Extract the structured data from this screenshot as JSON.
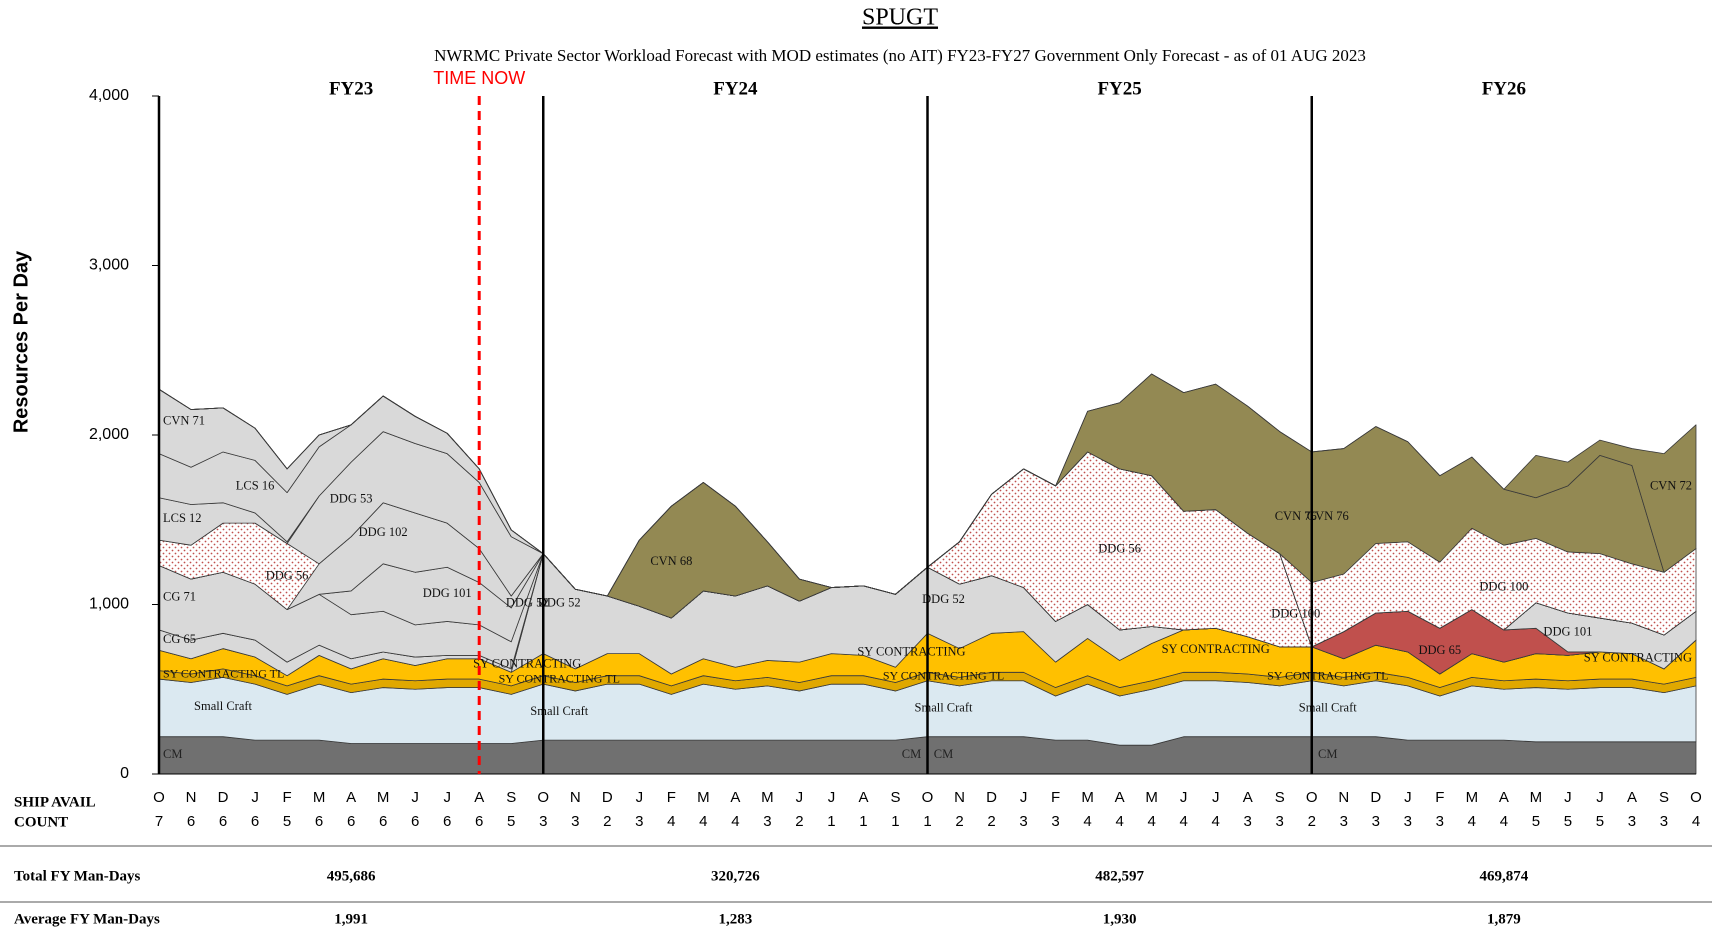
{
  "chart_data": {
    "type": "stacked-area",
    "title": "SPUGT",
    "subtitle": "NWRMC Private Sector Workload Forecast with MOD estimates (no AIT) FY23-FY27 Government Only Forecast - as of 01 AUG 2023",
    "y_label": "Resources Per Day",
    "ylim": [
      0,
      4000
    ],
    "yticks": [
      0,
      {
        "value": 1000,
        "label": "1,000"
      },
      {
        "value": 2000,
        "label": "2,000"
      },
      {
        "value": 3000,
        "label": "3,000"
      },
      {
        "value": 4000,
        "label": "4,000"
      }
    ],
    "grid": false,
    "fiscal_years": [
      "FY23",
      "FY24",
      "FY25",
      "FY26"
    ],
    "time_now": {
      "label": "TIME NOW",
      "index": 10,
      "color": "#ff0000"
    },
    "categories": [
      "O",
      "N",
      "D",
      "J",
      "F",
      "M",
      "A",
      "M",
      "J",
      "J",
      "A",
      "S",
      "O",
      "N",
      "D",
      "J",
      "F",
      "M",
      "A",
      "M",
      "J",
      "J",
      "A",
      "S",
      "O",
      "N",
      "D",
      "J",
      "F",
      "M",
      "A",
      "M",
      "J",
      "J",
      "A",
      "S",
      "O",
      "N",
      "D",
      "J",
      "F",
      "M",
      "A",
      "M",
      "J",
      "J",
      "A",
      "S",
      "O"
    ],
    "ship_avail_label": [
      "SHIP AVAIL",
      "COUNT"
    ],
    "ship_avail_count": [
      7,
      6,
      6,
      6,
      5,
      6,
      6,
      6,
      6,
      6,
      6,
      5,
      3,
      3,
      2,
      3,
      4,
      4,
      4,
      3,
      2,
      1,
      1,
      1,
      1,
      2,
      2,
      3,
      3,
      4,
      4,
      4,
      4,
      4,
      3,
      3,
      2,
      3,
      3,
      3,
      3,
      4,
      4,
      5,
      5,
      5,
      3,
      3,
      4
    ],
    "series": [
      {
        "name": "CM",
        "color": "#707070",
        "values": [
          220,
          220,
          220,
          200,
          200,
          200,
          180,
          180,
          180,
          180,
          180,
          180,
          200,
          200,
          200,
          200,
          200,
          200,
          200,
          200,
          200,
          200,
          200,
          200,
          220,
          220,
          220,
          220,
          200,
          200,
          170,
          170,
          220,
          220,
          220,
          220,
          220,
          220,
          220,
          200,
          200,
          200,
          200,
          190,
          190,
          190,
          190,
          190,
          190
        ]
      },
      {
        "name": "Small Craft",
        "color": "#dbe9f1",
        "values": [
          340,
          320,
          350,
          330,
          270,
          330,
          300,
          330,
          320,
          330,
          330,
          290,
          330,
          290,
          330,
          330,
          270,
          330,
          300,
          320,
          290,
          330,
          330,
          290,
          330,
          300,
          330,
          330,
          260,
          330,
          290,
          330,
          330,
          330,
          320,
          300,
          330,
          300,
          330,
          320,
          260,
          320,
          300,
          320,
          310,
          320,
          320,
          290,
          330
        ]
      },
      {
        "name": "SY CONTRACTING TL",
        "color": "#e0a800",
        "values": [
          50,
          50,
          50,
          50,
          50,
          50,
          50,
          50,
          50,
          50,
          50,
          50,
          50,
          50,
          50,
          50,
          50,
          50,
          50,
          50,
          50,
          50,
          50,
          50,
          50,
          50,
          50,
          50,
          50,
          50,
          50,
          50,
          50,
          50,
          50,
          50,
          50,
          50,
          50,
          50,
          50,
          50,
          50,
          50,
          50,
          50,
          50,
          50,
          50
        ]
      },
      {
        "name": "SY CONTRACTING",
        "color": "#ffc000",
        "values": [
          120,
          90,
          120,
          110,
          60,
          120,
          90,
          120,
          90,
          120,
          120,
          80,
          130,
          80,
          130,
          130,
          70,
          100,
          80,
          100,
          120,
          130,
          120,
          90,
          230,
          170,
          230,
          240,
          150,
          220,
          160,
          220,
          250,
          260,
          220,
          180,
          150,
          110,
          160,
          150,
          80,
          140,
          110,
          150,
          150,
          160,
          150,
          90,
          220
        ]
      },
      {
        "name": "DDG 52",
        "color": "#d9d9d9",
        "values": [
          0,
          0,
          0,
          0,
          0,
          0,
          0,
          0,
          0,
          0,
          0,
          0,
          590,
          470,
          340,
          280,
          330,
          400,
          420,
          440,
          360,
          390,
          410,
          430,
          390,
          380,
          340,
          260,
          240,
          200,
          180,
          100,
          0,
          0,
          0,
          0,
          0,
          0,
          0,
          0,
          0,
          0,
          0,
          0,
          0,
          0,
          0,
          0,
          0
        ]
      },
      {
        "name": "CG 65",
        "color": "#d9d9d9",
        "values": [
          120,
          110,
          90,
          100,
          80,
          60,
          60,
          40,
          50,
          20,
          20,
          20,
          0,
          0,
          0,
          0,
          0,
          0,
          0,
          0,
          0,
          0,
          0,
          0,
          0,
          0,
          0,
          0,
          0,
          0,
          0,
          0,
          0,
          0,
          0,
          0,
          0,
          0,
          0,
          0,
          0,
          0,
          0,
          0,
          0,
          0,
          0,
          0,
          0
        ]
      },
      {
        "name": "DDG 65",
        "color": "#c0504d",
        "values": [
          0,
          0,
          0,
          0,
          0,
          0,
          0,
          0,
          0,
          0,
          0,
          0,
          0,
          0,
          0,
          0,
          0,
          0,
          0,
          0,
          0,
          0,
          0,
          0,
          0,
          0,
          0,
          0,
          0,
          0,
          0,
          0,
          0,
          0,
          0,
          0,
          0,
          160,
          190,
          240,
          270,
          260,
          190,
          150,
          20,
          0,
          0,
          0,
          0
        ]
      },
      {
        "name": "CG 71",
        "color": "#d9d9d9",
        "values": [
          380,
          360,
          360,
          330,
          310,
          300,
          260,
          240,
          190,
          200,
          180,
          160,
          0,
          0,
          0,
          0,
          0,
          0,
          0,
          0,
          0,
          0,
          0,
          0,
          0,
          0,
          0,
          0,
          0,
          0,
          0,
          0,
          0,
          0,
          0,
          0,
          0,
          0,
          0,
          0,
          0,
          0,
          0,
          0,
          0,
          0,
          0,
          0,
          0
        ]
      },
      {
        "name": "DDG 101",
        "color": "#d9d9d9",
        "values": [
          0,
          0,
          0,
          0,
          0,
          0,
          140,
          280,
          310,
          320,
          250,
          200,
          0,
          0,
          0,
          0,
          0,
          0,
          0,
          0,
          0,
          0,
          0,
          0,
          0,
          0,
          0,
          0,
          0,
          0,
          0,
          0,
          0,
          0,
          0,
          0,
          0,
          0,
          0,
          0,
          0,
          0,
          0,
          150,
          230,
          200,
          180,
          200,
          170
        ]
      },
      {
        "name": "DDG 102",
        "color": "#d9d9d9",
        "values": [
          0,
          0,
          0,
          0,
          0,
          180,
          320,
          360,
          350,
          260,
          200,
          70,
          0,
          0,
          0,
          0,
          0,
          0,
          0,
          0,
          0,
          0,
          0,
          0,
          0,
          0,
          0,
          0,
          0,
          0,
          0,
          0,
          0,
          0,
          0,
          0,
          0,
          0,
          0,
          0,
          0,
          0,
          0,
          0,
          0,
          0,
          0,
          0,
          0
        ]
      },
      {
        "name": "DDG 56",
        "color": "#c0504d",
        "pattern": "dots",
        "values": [
          150,
          200,
          290,
          360,
          390,
          0,
          0,
          0,
          0,
          0,
          0,
          0,
          0,
          0,
          0,
          0,
          0,
          0,
          0,
          0,
          0,
          0,
          0,
          0,
          0,
          250,
          480,
          700,
          800,
          900,
          950,
          890,
          700,
          700,
          610,
          550,
          0,
          0,
          0,
          0,
          0,
          0,
          0,
          0,
          0,
          0,
          0,
          0,
          0
        ]
      },
      {
        "name": "DDG 53",
        "color": "#d9d9d9",
        "values": [
          0,
          0,
          0,
          0,
          0,
          400,
          440,
          420,
          410,
          410,
          390,
          350,
          0,
          0,
          0,
          0,
          0,
          0,
          0,
          0,
          0,
          0,
          0,
          0,
          0,
          0,
          0,
          0,
          0,
          0,
          0,
          0,
          0,
          0,
          0,
          0,
          0,
          0,
          0,
          0,
          0,
          0,
          0,
          0,
          0,
          0,
          0,
          0,
          0
        ]
      },
      {
        "name": "LCS 12",
        "color": "#d9d9d9",
        "values": [
          250,
          240,
          120,
          60,
          10,
          0,
          0,
          0,
          0,
          0,
          0,
          0,
          0,
          0,
          0,
          0,
          0,
          0,
          0,
          0,
          0,
          0,
          0,
          0,
          0,
          0,
          0,
          0,
          0,
          0,
          0,
          0,
          0,
          0,
          0,
          0,
          0,
          0,
          0,
          0,
          0,
          0,
          0,
          0,
          0,
          0,
          0,
          0,
          0
        ]
      },
      {
        "name": "LCS 16",
        "color": "#d9d9d9",
        "values": [
          260,
          220,
          300,
          310,
          290,
          290,
          220,
          210,
          160,
          120,
          80,
          40,
          0,
          0,
          0,
          0,
          0,
          0,
          0,
          0,
          0,
          0,
          0,
          0,
          0,
          0,
          0,
          0,
          0,
          0,
          0,
          0,
          0,
          0,
          0,
          0,
          0,
          0,
          0,
          0,
          0,
          0,
          0,
          0,
          0,
          0,
          0,
          0,
          0
        ]
      },
      {
        "name": "CVN 71",
        "color": "#d9d9d9",
        "values": [
          380,
          340,
          260,
          190,
          140,
          70,
          0,
          0,
          0,
          0,
          0,
          0,
          0,
          0,
          0,
          0,
          0,
          0,
          0,
          0,
          0,
          0,
          0,
          0,
          0,
          0,
          0,
          0,
          0,
          0,
          0,
          0,
          0,
          0,
          0,
          0,
          0,
          0,
          0,
          0,
          0,
          0,
          0,
          0,
          0,
          0,
          0,
          0,
          0
        ]
      },
      {
        "name": "CVN 68",
        "color": "#938953",
        "values": [
          0,
          0,
          0,
          0,
          0,
          0,
          0,
          0,
          0,
          0,
          0,
          0,
          0,
          0,
          0,
          390,
          660,
          640,
          530,
          260,
          130,
          0,
          0,
          0,
          0,
          0,
          0,
          0,
          0,
          0,
          0,
          0,
          0,
          0,
          0,
          0,
          0,
          0,
          0,
          0,
          0,
          0,
          0,
          0,
          0,
          0,
          0,
          0,
          0
        ]
      },
      {
        "name": "DDG 100",
        "color": "#c0504d",
        "pattern": "dots",
        "values": [
          0,
          0,
          0,
          0,
          0,
          0,
          0,
          0,
          0,
          0,
          0,
          0,
          0,
          0,
          0,
          0,
          0,
          0,
          0,
          0,
          0,
          0,
          0,
          0,
          0,
          0,
          0,
          0,
          0,
          0,
          0,
          0,
          0,
          0,
          0,
          0,
          380,
          340,
          410,
          410,
          390,
          480,
          500,
          380,
          360,
          380,
          350,
          370,
          370
        ]
      },
      {
        "name": "CVN 76",
        "color": "#938953",
        "values": [
          0,
          0,
          0,
          0,
          0,
          0,
          0,
          0,
          0,
          0,
          0,
          0,
          0,
          0,
          0,
          0,
          0,
          0,
          0,
          0,
          0,
          0,
          0,
          0,
          0,
          0,
          0,
          0,
          0,
          240,
          390,
          600,
          700,
          740,
          750,
          720,
          770,
          740,
          690,
          590,
          510,
          420,
          330,
          240,
          390,
          580,
          580,
          0,
          0
        ]
      },
      {
        "name": "CVN 72",
        "color": "#938953",
        "values": [
          0,
          0,
          0,
          0,
          0,
          0,
          0,
          0,
          0,
          0,
          0,
          0,
          0,
          0,
          0,
          0,
          0,
          0,
          0,
          0,
          0,
          0,
          0,
          0,
          0,
          0,
          0,
          0,
          0,
          0,
          0,
          0,
          0,
          0,
          0,
          0,
          0,
          0,
          0,
          0,
          0,
          0,
          0,
          250,
          140,
          90,
          100,
          700,
          730
        ]
      }
    ],
    "summary": [
      {
        "label": "Total FY Man-Days",
        "values": [
          "495,686",
          "320,726",
          "482,597",
          "469,874"
        ]
      },
      {
        "label": "Average FY Man-Days",
        "values": [
          "1,991",
          "1,283",
          "1,930",
          "1,879"
        ]
      }
    ]
  }
}
